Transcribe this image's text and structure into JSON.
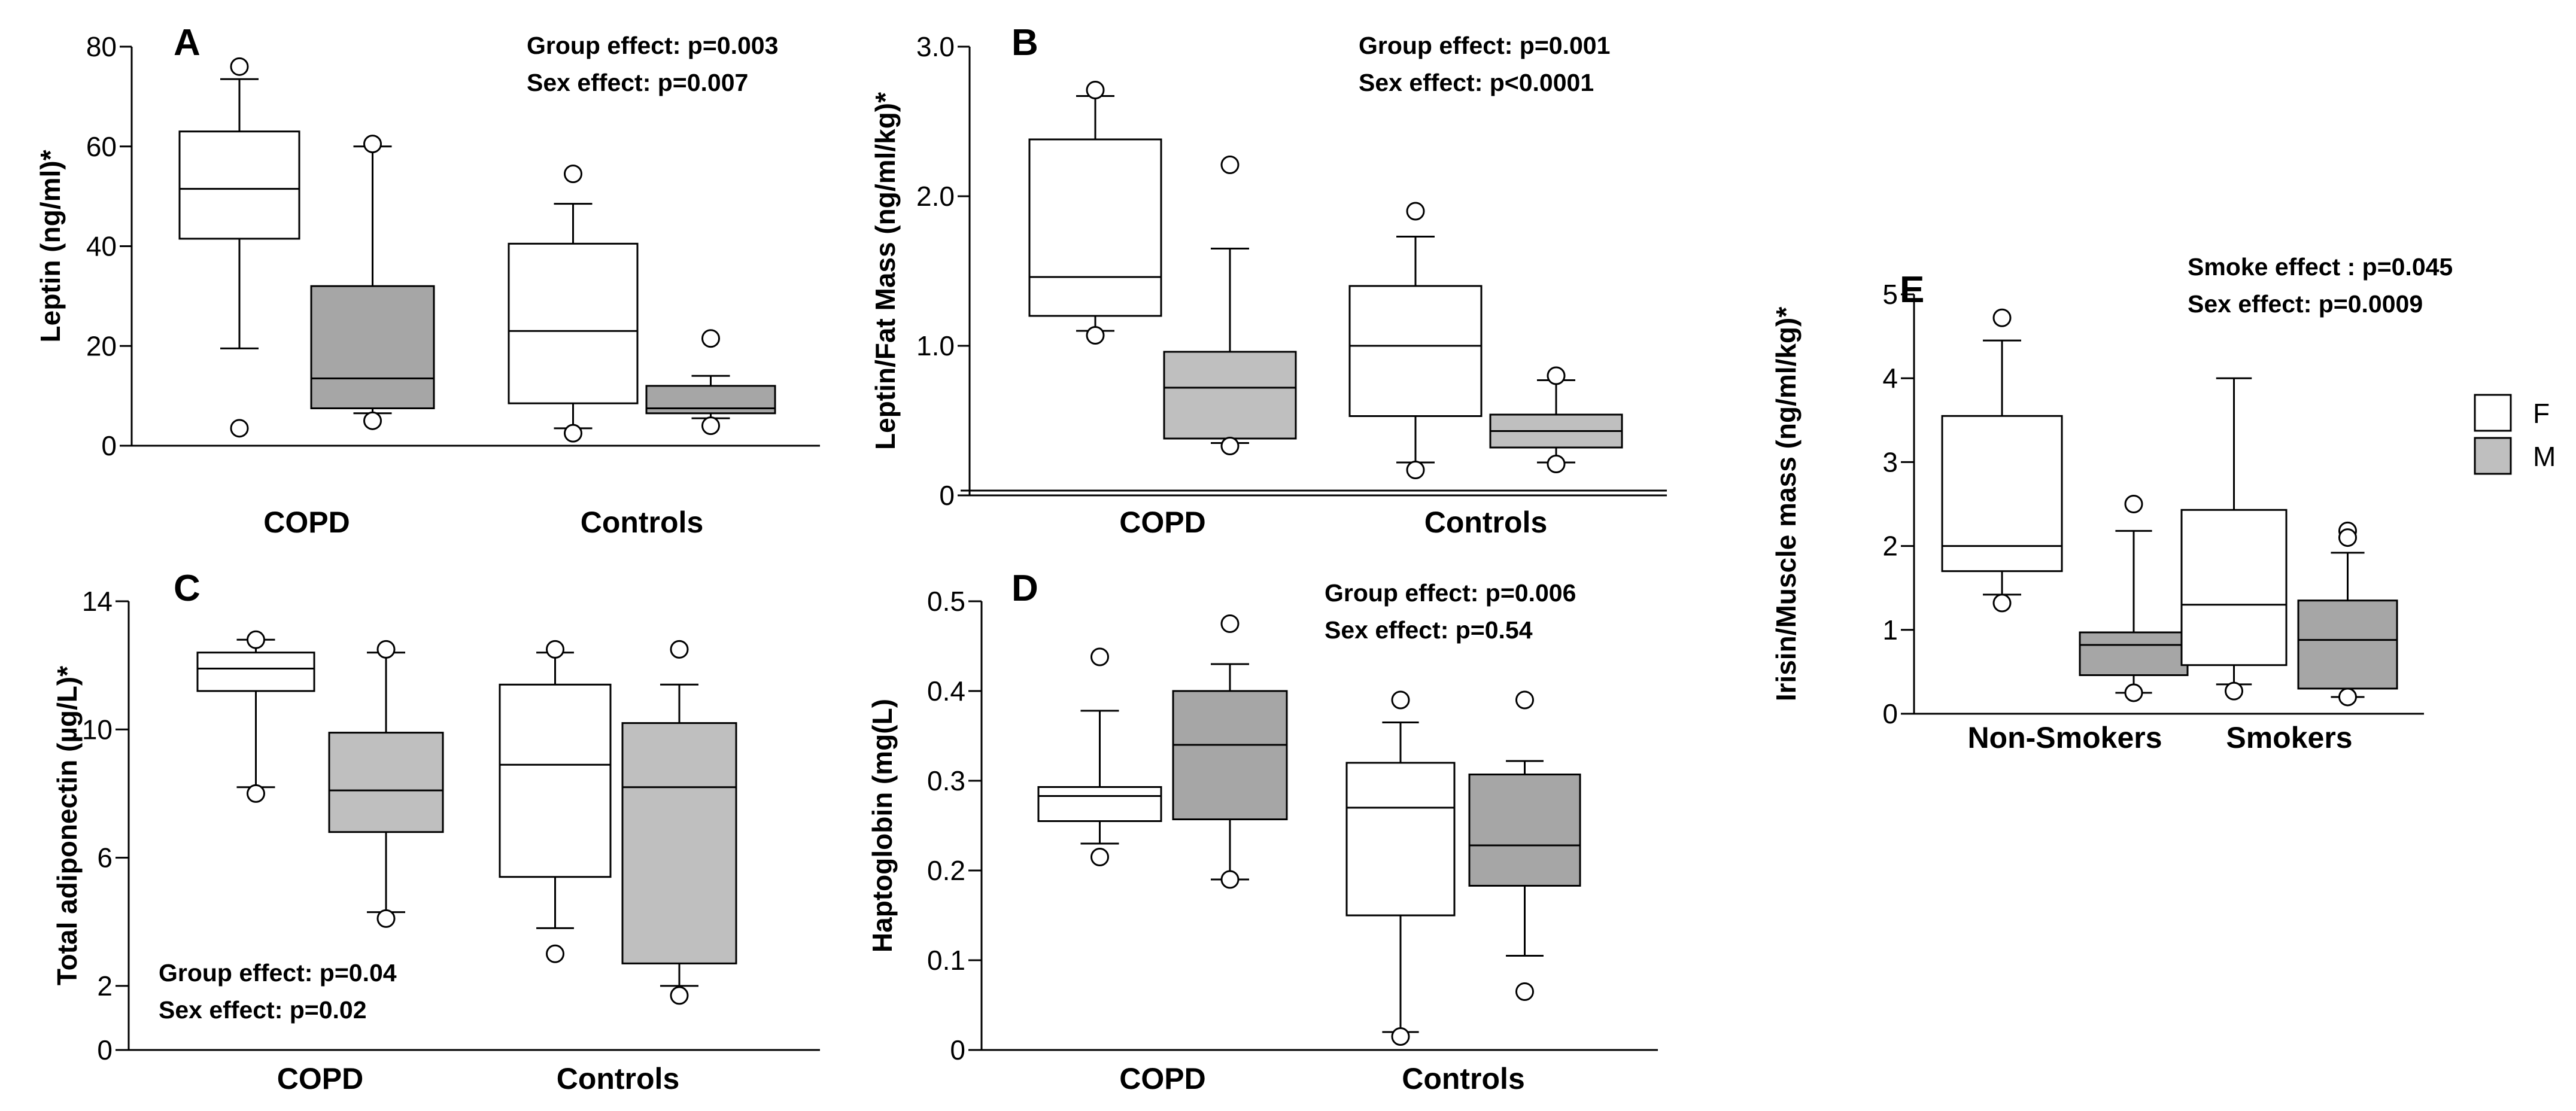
{
  "legend": [
    {
      "label": "F",
      "color": "#ffffff"
    },
    {
      "label": "M",
      "color": "#bfbfbf"
    }
  ],
  "chart_data": [
    {
      "panel": "A",
      "type": "box",
      "ylabel": "Leptin (ng/ml)*",
      "ylim": [
        0,
        80
      ],
      "ticks": [
        0,
        20,
        40,
        60,
        80
      ],
      "tick_labels": [
        "0",
        "20",
        "40",
        "60",
        "80"
      ],
      "categories": [
        "COPD",
        "Controls"
      ],
      "annotations": [
        "Group effect: p=0.003",
        "Sex effect: p=0.007"
      ],
      "boxes": [
        {
          "group": "COPD",
          "sex": "F",
          "whisker_low": 19.5,
          "q1": 41.5,
          "median": 51.5,
          "q3": 63,
          "whisker_high": 73.5,
          "outliers": [
            76,
            3.5
          ]
        },
        {
          "group": "COPD",
          "sex": "M",
          "whisker_low": 6.5,
          "q1": 7.5,
          "median": 13.5,
          "q3": 32,
          "whisker_high": 60,
          "outliers": [
            60.5,
            5
          ]
        },
        {
          "group": "Controls",
          "sex": "F",
          "whisker_low": 3.5,
          "q1": 8.5,
          "median": 23,
          "q3": 40.5,
          "whisker_high": 48.5,
          "outliers": [
            54.5,
            2.5
          ]
        },
        {
          "group": "Controls",
          "sex": "M",
          "whisker_low": 5.5,
          "q1": 6.5,
          "median": 7.5,
          "q3": 12,
          "whisker_high": 14,
          "outliers": [
            21.5,
            4
          ]
        }
      ]
    },
    {
      "panel": "B",
      "type": "box",
      "ylabel": "Leptin/Fat Mass (ng/ml/kg)*",
      "ylim": [
        0,
        3.0
      ],
      "ticks": [
        0,
        1.0,
        2.0,
        3.0
      ],
      "tick_labels": [
        "0",
        "1.0",
        "2.0",
        "3.0"
      ],
      "categories": [
        "COPD",
        "Controls"
      ],
      "annotations": [
        "Group effect: p=0.001",
        "Sex effect: p<0.0001"
      ],
      "boxes": [
        {
          "group": "COPD",
          "sex": "F",
          "whisker_low": 1.1,
          "q1": 1.2,
          "median": 1.46,
          "q3": 2.38,
          "whisker_high": 2.67,
          "outliers": [
            2.71,
            1.07
          ]
        },
        {
          "group": "COPD",
          "sex": "M",
          "whisker_low": 0.35,
          "q1": 0.38,
          "median": 0.72,
          "q3": 0.96,
          "whisker_high": 1.65,
          "outliers": [
            2.21,
            0.33
          ]
        },
        {
          "group": "Controls",
          "sex": "F",
          "whisker_low": 0.22,
          "q1": 0.53,
          "median": 1.0,
          "q3": 1.4,
          "whisker_high": 1.73,
          "outliers": [
            1.9,
            0.17
          ]
        },
        {
          "group": "Controls",
          "sex": "M",
          "whisker_low": 0.22,
          "q1": 0.32,
          "median": 0.43,
          "q3": 0.54,
          "whisker_high": 0.77,
          "outliers": [
            0.8,
            0.21
          ]
        }
      ]
    },
    {
      "panel": "C",
      "type": "box",
      "ylabel": "Total adiponectin (µg/L)*",
      "ylim": [
        0,
        14
      ],
      "ticks": [
        0,
        2,
        6,
        10,
        14
      ],
      "tick_labels": [
        "0",
        "2",
        "6",
        "10",
        "14"
      ],
      "categories": [
        "COPD",
        "Controls"
      ],
      "annotations": [
        "Group effect: p=0.04",
        "Sex effect: p=0.02"
      ],
      "boxes": [
        {
          "group": "COPD",
          "sex": "F",
          "whisker_low": 8.2,
          "q1": 11.2,
          "median": 11.9,
          "q3": 12.4,
          "whisker_high": 12.8,
          "outliers": [
            12.8,
            8.0
          ]
        },
        {
          "group": "COPD",
          "sex": "M",
          "whisker_low": 4.3,
          "q1": 6.8,
          "median": 8.1,
          "q3": 9.9,
          "whisker_high": 12.4,
          "outliers": [
            12.5,
            4.1
          ]
        },
        {
          "group": "Controls",
          "sex": "F",
          "whisker_low": 3.8,
          "q1": 5.4,
          "median": 8.9,
          "q3": 11.4,
          "whisker_high": 12.4,
          "outliers": [
            12.5,
            3.0
          ]
        },
        {
          "group": "Controls",
          "sex": "M",
          "whisker_low": 2.0,
          "q1": 2.7,
          "median": 8.2,
          "q3": 10.2,
          "whisker_high": 11.4,
          "outliers": [
            12.5,
            1.7
          ]
        }
      ]
    },
    {
      "panel": "D",
      "type": "box",
      "ylabel": "Haptoglobin (mg(L)",
      "ylim": [
        0,
        0.5
      ],
      "ticks": [
        0,
        0.1,
        0.2,
        0.3,
        0.4,
        0.5
      ],
      "tick_labels": [
        "0",
        "0.1",
        "0.2",
        "0.3",
        "0.4",
        "0.5"
      ],
      "categories": [
        "COPD",
        "Controls"
      ],
      "annotations": [
        "Group effect: p=0.006",
        "Sex effect: p=0.54"
      ],
      "boxes": [
        {
          "group": "COPD",
          "sex": "F",
          "whisker_low": 0.23,
          "q1": 0.255,
          "median": 0.283,
          "q3": 0.293,
          "whisker_high": 0.378,
          "outliers": [
            0.438,
            0.215
          ]
        },
        {
          "group": "COPD",
          "sex": "M",
          "whisker_low": 0.19,
          "q1": 0.257,
          "median": 0.34,
          "q3": 0.4,
          "whisker_high": 0.43,
          "outliers": [
            0.475,
            0.19
          ]
        },
        {
          "group": "Controls",
          "sex": "F",
          "whisker_low": 0.02,
          "q1": 0.15,
          "median": 0.27,
          "q3": 0.32,
          "whisker_high": 0.365,
          "outliers": [
            0.39,
            0.015
          ]
        },
        {
          "group": "Controls",
          "sex": "M",
          "whisker_low": 0.105,
          "q1": 0.183,
          "median": 0.228,
          "q3": 0.307,
          "whisker_high": 0.322,
          "outliers": [
            0.39,
            0.065
          ]
        }
      ]
    },
    {
      "panel": "E",
      "type": "box",
      "ylabel": "Irisin/Muscle mass (ng/ml/kg)*",
      "ylim": [
        0,
        5
      ],
      "ticks": [
        0,
        1,
        2,
        3,
        4,
        5
      ],
      "tick_labels": [
        "0",
        "1",
        "2",
        "3",
        "4",
        "5"
      ],
      "categories": [
        "Non-Smokers",
        "Smokers"
      ],
      "annotations": [
        "Smoke effect : p=0.045",
        "Sex effect: p=0.0009"
      ],
      "boxes": [
        {
          "group": "Non-Smokers",
          "sex": "F",
          "whisker_low": 1.42,
          "q1": 1.7,
          "median": 2.0,
          "q3": 3.55,
          "whisker_high": 4.45,
          "outliers": [
            4.72,
            1.32
          ]
        },
        {
          "group": "Non-Smokers",
          "sex": "M",
          "whisker_low": 0.25,
          "q1": 0.46,
          "median": 0.82,
          "q3": 0.97,
          "whisker_high": 2.18,
          "outliers": [
            2.5,
            0.25
          ]
        },
        {
          "group": "Smokers",
          "sex": "F",
          "whisker_low": 0.35,
          "q1": 0.58,
          "median": 1.3,
          "q3": 2.43,
          "whisker_high": 4.0,
          "outliers": [
            0.27
          ]
        },
        {
          "group": "Smokers",
          "sex": "M",
          "whisker_low": 0.2,
          "q1": 0.3,
          "median": 0.88,
          "q3": 1.35,
          "whisker_high": 1.92,
          "outliers": [
            2.18,
            2.1,
            0.2
          ]
        }
      ]
    }
  ]
}
